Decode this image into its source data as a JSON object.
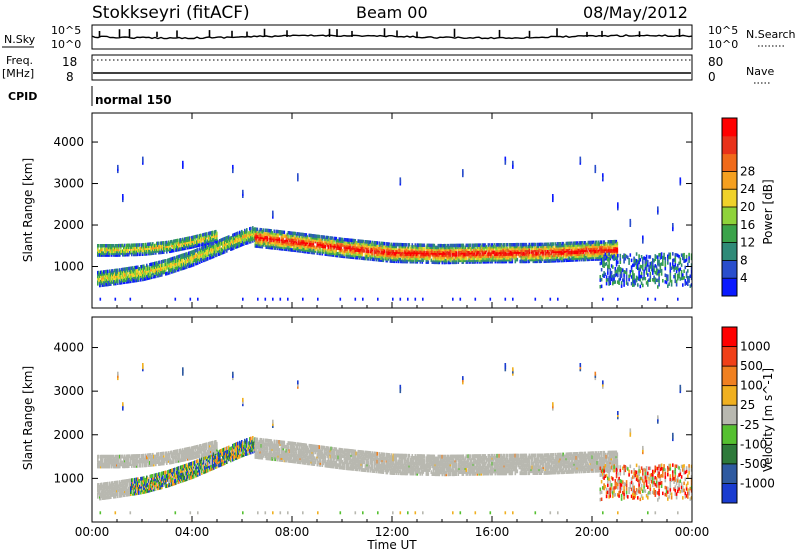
{
  "header": {
    "station": "Stokkseyri (fitACF)",
    "beam": "Beam 00",
    "date": "08/May/2012"
  },
  "noise_panel": {
    "left_label": "N.Sky",
    "left_ticks": [
      "10^5",
      "10^0"
    ],
    "right_label": "N.Search",
    "right_ticks": [
      "10^5",
      "10^0"
    ]
  },
  "freq_panel": {
    "left_label_line1": "Freq.",
    "left_label_line2": "[MHz]",
    "left_ticks": [
      "18",
      "8"
    ],
    "right_label": "Nave",
    "right_ticks": [
      "80",
      "0"
    ]
  },
  "cpid_panel": {
    "label": "CPID",
    "value": "normal 150"
  },
  "time_axis": {
    "label": "Time UT",
    "ticks": [
      "00:00",
      "04:00",
      "08:00",
      "12:00",
      "16:00",
      "20:00",
      "00:00"
    ]
  },
  "chart_data": [
    {
      "type": "heatmap",
      "title": "",
      "quantity": "Power",
      "ylabel": "Slant Range [km]",
      "xlabel": "",
      "y_ticks": [
        1000,
        2000,
        3000,
        4000
      ],
      "ylim": [
        0,
        4700
      ],
      "xlim_hours": [
        0,
        24
      ],
      "colorbar": {
        "label": "Power [dB]",
        "ticks": [
          "4",
          "8",
          "12",
          "16",
          "20",
          "24",
          "28"
        ],
        "colors": [
          "#0a1aff",
          "#2a4ecc",
          "#2f8a78",
          "#3aa34a",
          "#8fd33a",
          "#f0d22a",
          "#f5a020",
          "#f06a1a",
          "#e8321a",
          "#ff0000"
        ]
      },
      "bands": [
        {
          "name": "lower band",
          "x_hours": [
            0.2,
            1,
            2,
            3,
            4,
            5,
            6,
            6.5
          ],
          "y_km": [
            700,
            760,
            850,
            1000,
            1200,
            1450,
            1700,
            1800
          ]
        },
        {
          "name": "upper band",
          "x_hours": [
            0.2,
            1,
            2,
            3,
            4,
            5
          ],
          "y_km": [
            1400,
            1400,
            1420,
            1480,
            1600,
            1750
          ]
        },
        {
          "name": "main band",
          "x_hours": [
            6.5,
            8,
            10,
            12,
            14,
            16,
            18,
            20,
            21
          ],
          "y_km": [
            1700,
            1600,
            1450,
            1330,
            1300,
            1320,
            1330,
            1380,
            1400
          ]
        }
      ]
    },
    {
      "type": "heatmap",
      "title": "",
      "quantity": "Velocity",
      "ylabel": "Slant Range [km]",
      "xlabel": "Time UT",
      "y_ticks": [
        1000,
        2000,
        3000,
        4000
      ],
      "ylim": [
        0,
        4700
      ],
      "xlim_hours": [
        0,
        24
      ],
      "colorbar": {
        "label": "Velocity [m s^-1]",
        "ticks": [
          "1000",
          "500",
          "100",
          "25",
          "-25",
          "-100",
          "-500",
          "-1000"
        ],
        "colors": [
          "#1a3cd0",
          "#2f5aa0",
          "#2e7a3a",
          "#55c030",
          "#b8b8b0",
          "#f0b020",
          "#f08020",
          "#f04018",
          "#ff0000"
        ]
      }
    }
  ]
}
